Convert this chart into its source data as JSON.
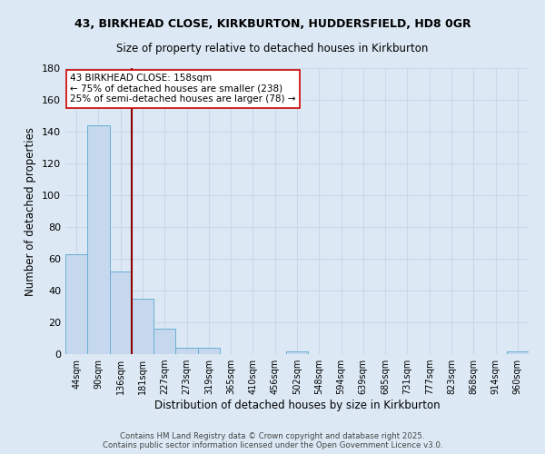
{
  "title_line1": "43, BIRKHEAD CLOSE, KIRKBURTON, HUDDERSFIELD, HD8 0GR",
  "title_line2": "Size of property relative to detached houses in Kirkburton",
  "xlabel": "Distribution of detached houses by size in Kirkburton",
  "ylabel": "Number of detached properties",
  "categories": [
    "44sqm",
    "90sqm",
    "136sqm",
    "181sqm",
    "227sqm",
    "273sqm",
    "319sqm",
    "365sqm",
    "410sqm",
    "456sqm",
    "502sqm",
    "548sqm",
    "594sqm",
    "639sqm",
    "685sqm",
    "731sqm",
    "777sqm",
    "823sqm",
    "868sqm",
    "914sqm",
    "960sqm"
  ],
  "values": [
    63,
    144,
    52,
    35,
    16,
    4,
    4,
    0,
    0,
    0,
    2,
    0,
    0,
    0,
    0,
    0,
    0,
    0,
    0,
    0,
    2
  ],
  "bar_color": "#c5d8ee",
  "bar_edge_color": "#6aaed6",
  "red_line_x": 2.5,
  "red_line_color": "#8b0000",
  "annotation_text": "43 BIRKHEAD CLOSE: 158sqm\n← 75% of detached houses are smaller (238)\n25% of semi-detached houses are larger (78) →",
  "annotation_box_color": "#ffffff",
  "annotation_box_edge": "#cc0000",
  "ylim": [
    0,
    180
  ],
  "yticks": [
    0,
    20,
    40,
    60,
    80,
    100,
    120,
    140,
    160,
    180
  ],
  "bg_color": "#dce9f5",
  "fig_bg_color": "#dce9f5",
  "grid_color": "#c8d8e8",
  "footer_line1": "Contains HM Land Registry data © Crown copyright and database right 2025.",
  "footer_line2": "Contains public sector information licensed under the Open Government Licence v3.0."
}
